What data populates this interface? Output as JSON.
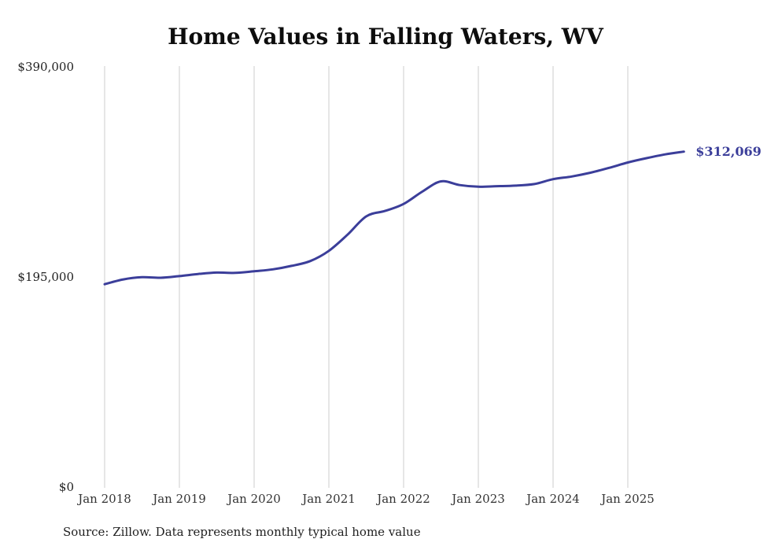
{
  "chart_data": {
    "type": "line",
    "title": "Home Values in Falling Waters, WV",
    "source": "Source: Zillow. Data represents monthly typical home value",
    "line_color": "#3b3e9a",
    "grid_color": "#cccccc",
    "end_label": "$312,069",
    "xlabel": "",
    "ylabel": "",
    "ylim": [
      0,
      390000
    ],
    "grid": "vertical-only",
    "legend": "none",
    "y_ticks": [
      {
        "value": 0,
        "label": "$0"
      },
      {
        "value": 195000,
        "label": "$195,000"
      },
      {
        "value": 390000,
        "label": "$390,000"
      }
    ],
    "x_ticks": [
      {
        "month": 0,
        "label": "Jan 2018"
      },
      {
        "month": 12,
        "label": "Jan 2019"
      },
      {
        "month": 24,
        "label": "Jan 2020"
      },
      {
        "month": 36,
        "label": "Jan 2021"
      },
      {
        "month": 48,
        "label": "Jan 2022"
      },
      {
        "month": 60,
        "label": "Jan 2023"
      },
      {
        "month": 72,
        "label": "Jan 2024"
      },
      {
        "month": 84,
        "label": "Jan 2025"
      }
    ],
    "series": [
      {
        "name": "Monthly typical home value",
        "start": "2018-01",
        "step_months": 3,
        "values": [
          189000,
          193500,
          195500,
          195000,
          196500,
          198500,
          199800,
          199500,
          201000,
          202800,
          206000,
          210500,
          220000,
          235000,
          252000,
          257000,
          263500,
          275000,
          284500,
          281000,
          279500,
          280000,
          280500,
          282000,
          286500,
          289000,
          292500,
          297000,
          302000,
          306000,
          309500,
          312069
        ]
      }
    ],
    "last_point": {
      "date": "2025-10",
      "value": 312069
    }
  }
}
